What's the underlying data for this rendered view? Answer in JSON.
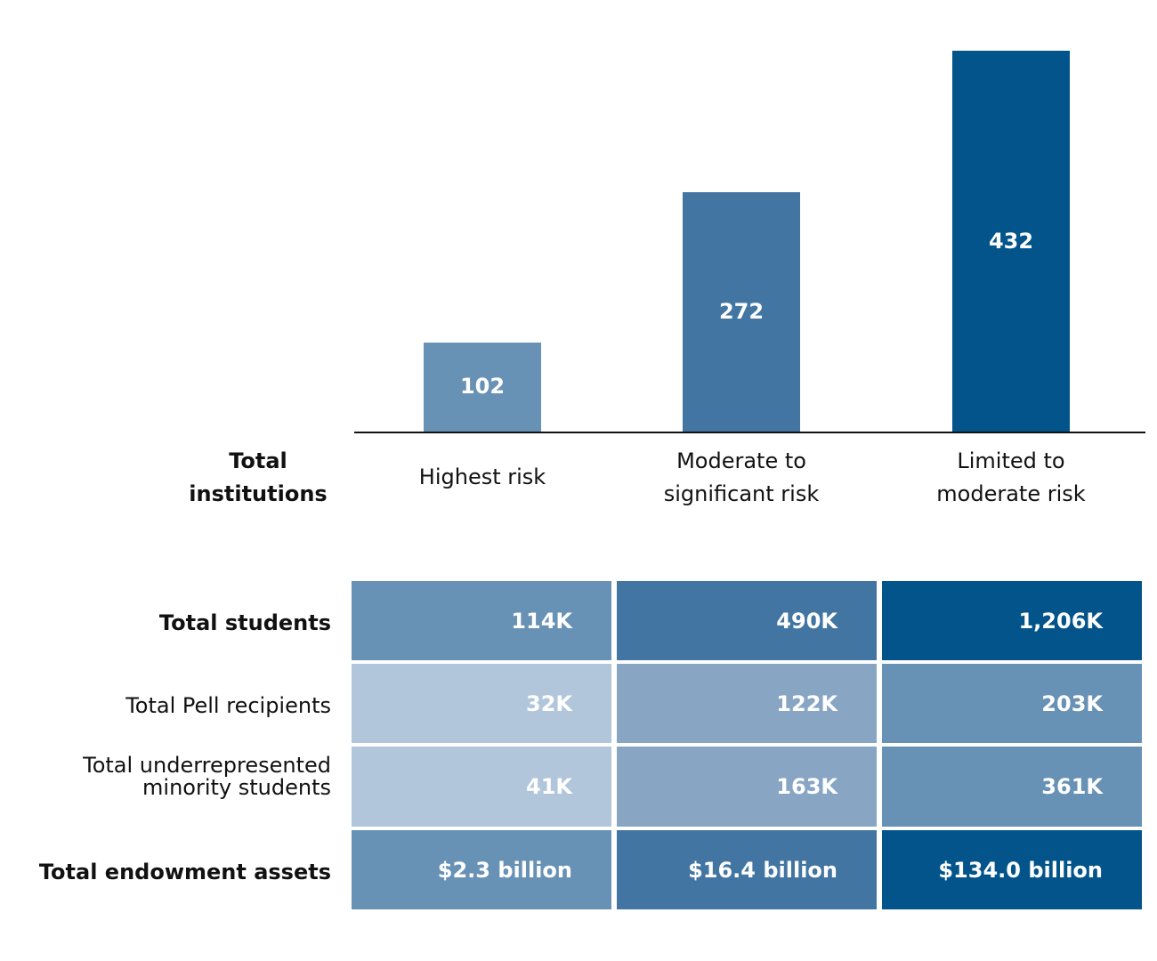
{
  "chart_data": {
    "type": "bar",
    "row_title": "Total institutions",
    "categories": [
      "Highest risk",
      "Moderate to significant risk",
      "Limited to moderate risk"
    ],
    "category_lines": [
      [
        "Highest risk"
      ],
      [
        "Moderate to",
        "significant risk"
      ],
      [
        "Limited to",
        "moderate risk"
      ]
    ],
    "values": [
      102,
      272,
      432
    ],
    "value_labels": [
      "102",
      "272",
      "432"
    ],
    "colors": [
      "#6791b5",
      "#4275a1",
      "#02548a"
    ],
    "ylim": [
      0,
      432
    ],
    "grid": false
  },
  "table": {
    "rows": [
      {
        "label": "Total students",
        "bold": true,
        "values": [
          "114K",
          "490K",
          "1,206K"
        ],
        "colors": [
          "#6791b5",
          "#4275a1",
          "#02548a"
        ]
      },
      {
        "label": "Total Pell recipients",
        "bold": false,
        "values": [
          "32K",
          "122K",
          "203K"
        ],
        "colors": [
          "#b1c6da",
          "#88a6c3",
          "#6791b5"
        ]
      },
      {
        "label": "Total underrepresented minority students",
        "label_lines": [
          "Total underrepresented",
          "minority students"
        ],
        "bold": false,
        "values": [
          "41K",
          "163K",
          "361K"
        ],
        "colors": [
          "#b1c6da",
          "#88a6c3",
          "#6791b5"
        ]
      },
      {
        "label": "Total endowment assets",
        "bold": true,
        "values": [
          "$2.3 billion",
          "$16.4 billion",
          "$134.0 billion"
        ],
        "colors": [
          "#6791b5",
          "#4275a1",
          "#02548a"
        ]
      }
    ]
  }
}
